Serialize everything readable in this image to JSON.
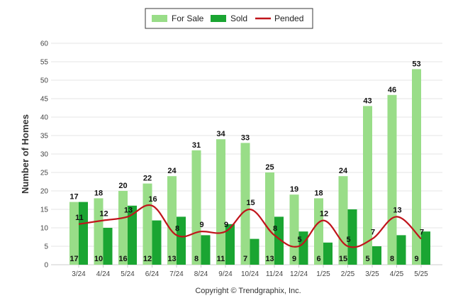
{
  "chart_data": {
    "type": "bar",
    "categories": [
      "3/24",
      "4/24",
      "5/24",
      "6/24",
      "7/24",
      "8/24",
      "9/24",
      "10/24",
      "11/24",
      "12/24",
      "1/25",
      "2/25",
      "3/25",
      "4/25",
      "5/25"
    ],
    "series": [
      {
        "name": "For Sale",
        "type": "bar",
        "color": "#99dd88",
        "values": [
          17,
          18,
          20,
          22,
          24,
          31,
          34,
          33,
          25,
          19,
          18,
          24,
          43,
          46,
          53
        ]
      },
      {
        "name": "Sold",
        "type": "bar",
        "color": "#1aa532",
        "values": [
          17,
          10,
          16,
          12,
          13,
          8,
          11,
          7,
          13,
          9,
          6,
          15,
          5,
          8,
          9
        ]
      },
      {
        "name": "Pended",
        "type": "line",
        "color": "#c0141b",
        "values": [
          11,
          12,
          13,
          16,
          8,
          9,
          9,
          15,
          8,
          5,
          12,
          5,
          7,
          13,
          7
        ]
      }
    ],
    "ylabel": "Number of Homes",
    "xlabel": "",
    "ylim": [
      0,
      60
    ],
    "yticks": [
      0,
      5,
      10,
      15,
      20,
      25,
      30,
      35,
      40,
      45,
      50,
      55,
      60
    ],
    "grid": true,
    "legend_position": "top-center"
  },
  "footer": {
    "copyright": "Copyright © Trendgraphix, Inc."
  }
}
